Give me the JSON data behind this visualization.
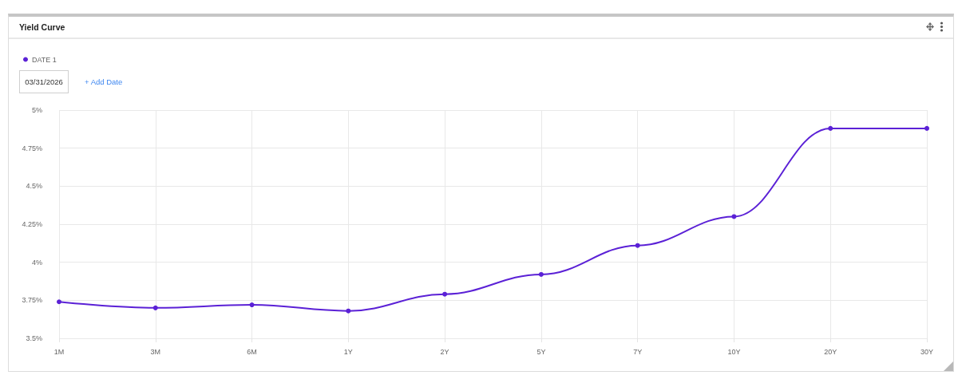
{
  "chart_data": {
    "type": "line",
    "title": "Yield Curve",
    "annotations": [
      "03/31/2026",
      "+ Add Date"
    ],
    "categories": [
      "1M",
      "3M",
      "6M",
      "1Y",
      "2Y",
      "5Y",
      "7Y",
      "10Y",
      "20Y",
      "30Y"
    ],
    "series": [
      {
        "name": "DATE 1",
        "color": "#5b21d6",
        "values": [
          3.74,
          3.7,
          3.72,
          3.68,
          3.79,
          3.92,
          4.11,
          4.3,
          4.88,
          4.88
        ]
      }
    ],
    "ylim": [
      3.5,
      5
    ],
    "yticks": [
      {
        "value": 3.5,
        "label": "3.5%"
      },
      {
        "value": 3.75,
        "label": "3.75%"
      },
      {
        "value": 4,
        "label": "4%"
      },
      {
        "value": 4.25,
        "label": "4.25%"
      },
      {
        "value": 4.5,
        "label": "4.5%"
      },
      {
        "value": 4.75,
        "label": "4.75%"
      },
      {
        "value": 5,
        "label": "5%"
      }
    ],
    "grid": true,
    "legend": "top left",
    "marker": "circle",
    "line_style": "solid"
  }
}
